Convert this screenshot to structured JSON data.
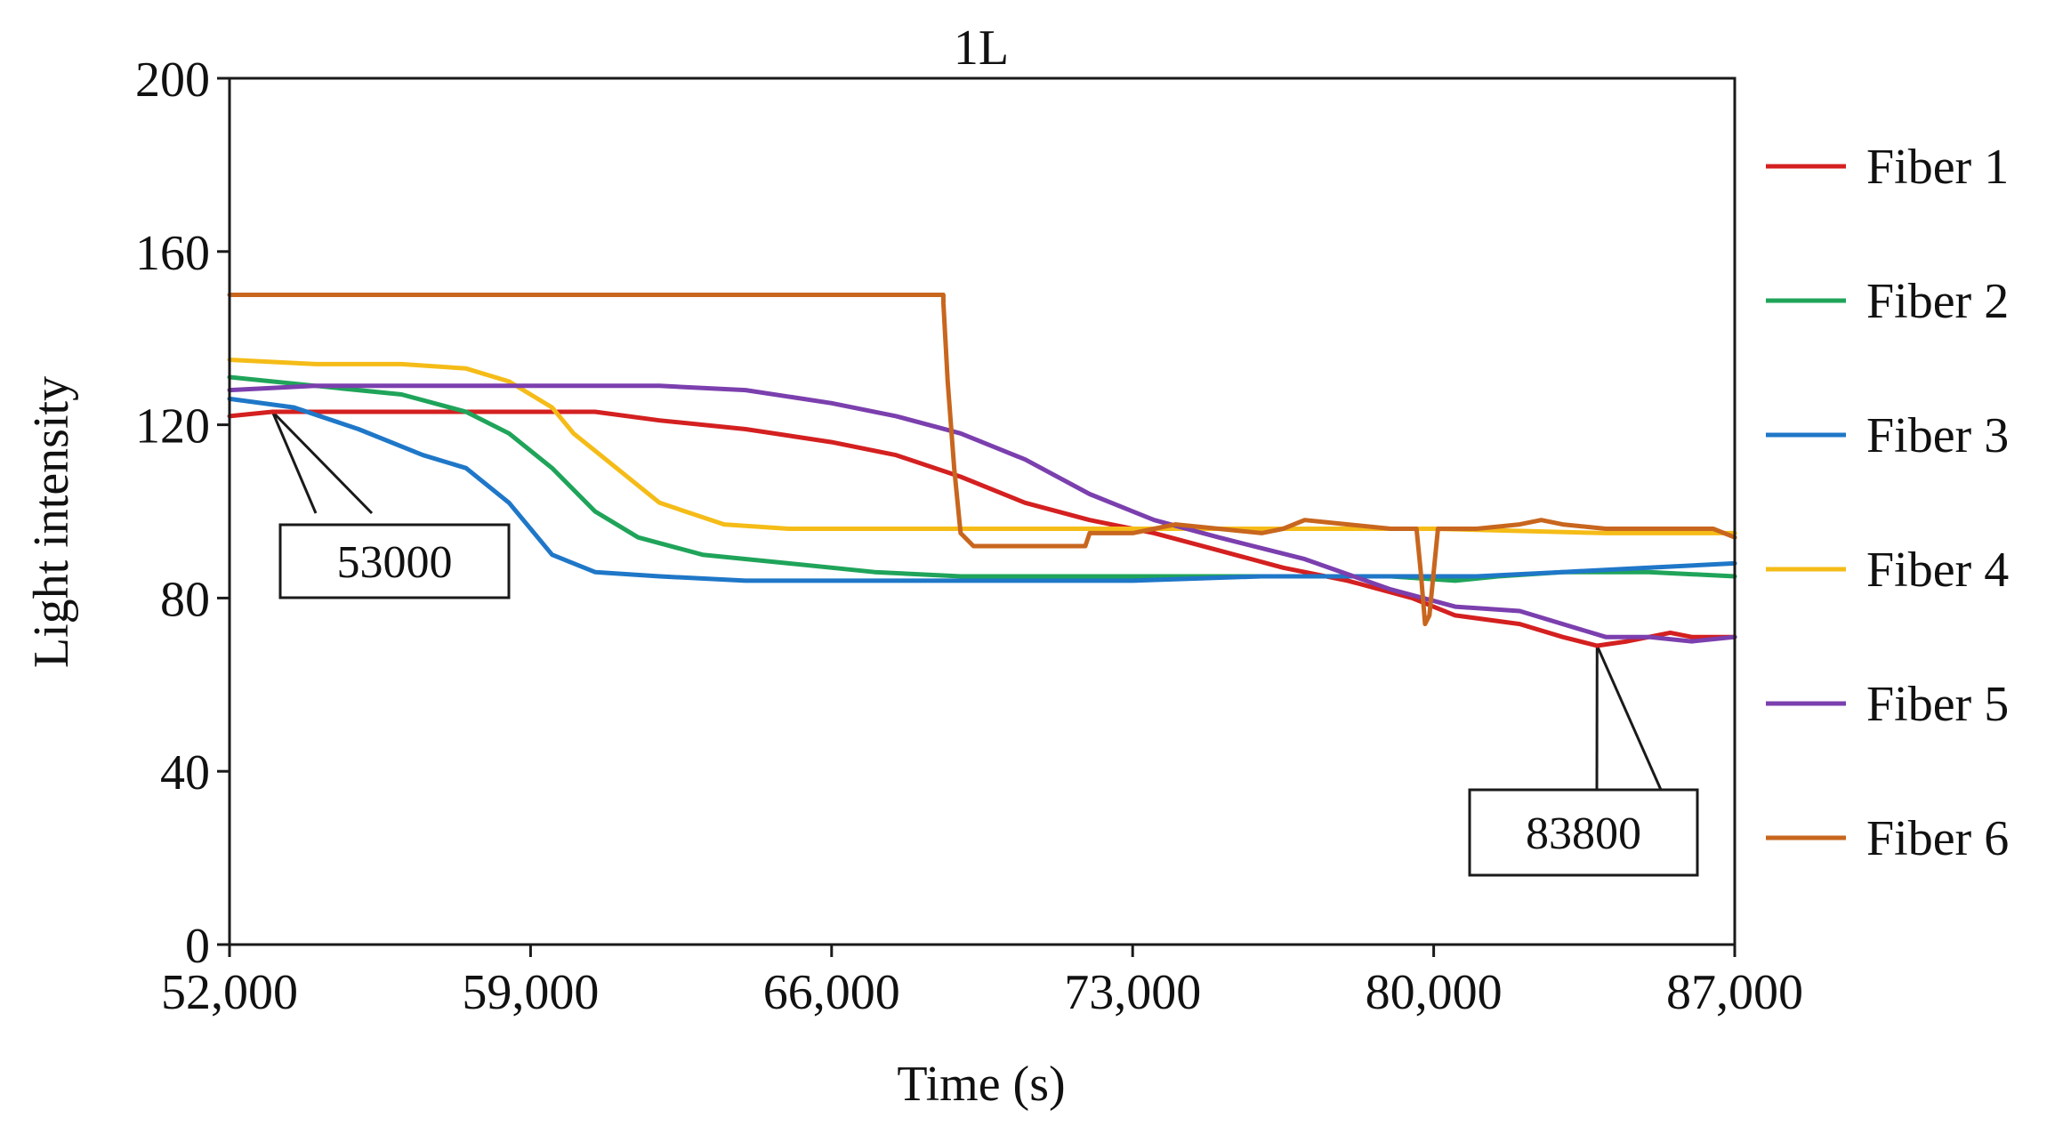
{
  "chart_data": {
    "type": "line",
    "title": "1L",
    "xlabel": "Time (s)",
    "ylabel": "Light intensity",
    "xlim": [
      52000,
      87000
    ],
    "ylim": [
      0,
      200
    ],
    "xticks": [
      52000,
      59000,
      66000,
      73000,
      80000,
      87000
    ],
    "xtick_labels": [
      "52,000",
      "59,000",
      "66,000",
      "73,000",
      "80,000",
      "87,000"
    ],
    "yticks": [
      0,
      40,
      80,
      120,
      160,
      200
    ],
    "ytick_labels": [
      "0",
      "40",
      "80",
      "120",
      "160",
      "200"
    ],
    "grid": false,
    "legend_position": "right",
    "series": [
      {
        "name": "Fiber 1",
        "color": "#D42020",
        "x": [
          52000,
          53000,
          55000,
          57000,
          59000,
          60500,
          62000,
          64000,
          66000,
          67500,
          69000,
          70500,
          72000,
          73500,
          75000,
          76500,
          78000,
          79500,
          80500,
          82000,
          83000,
          83800,
          84500,
          85500,
          86000,
          87000
        ],
        "y": [
          122,
          123,
          123,
          123,
          123,
          123,
          121,
          119,
          116,
          113,
          108,
          102,
          98,
          95,
          91,
          87,
          84,
          80,
          76,
          74,
          71,
          69,
          70,
          72,
          71,
          71
        ]
      },
      {
        "name": "Fiber 2",
        "color": "#1FA45A",
        "x": [
          52000,
          54000,
          56000,
          57500,
          58500,
          59500,
          60500,
          61500,
          63000,
          65000,
          67000,
          69000,
          71000,
          73000,
          75000,
          77000,
          79000,
          80500,
          81500,
          83000,
          85000,
          87000
        ],
        "y": [
          131,
          129,
          127,
          123,
          118,
          110,
          100,
          94,
          90,
          88,
          86,
          85,
          85,
          85,
          85,
          85,
          85,
          84,
          85,
          86,
          86,
          85
        ]
      },
      {
        "name": "Fiber 3",
        "color": "#1F77C8",
        "x": [
          52000,
          53500,
          55000,
          56500,
          57500,
          58500,
          59500,
          60500,
          62000,
          64000,
          67000,
          70000,
          73000,
          76000,
          79000,
          81000,
          83000,
          85000,
          87000
        ],
        "y": [
          126,
          124,
          119,
          113,
          110,
          102,
          90,
          86,
          85,
          84,
          84,
          84,
          84,
          85,
          85,
          85,
          86,
          87,
          88
        ]
      },
      {
        "name": "Fiber 4",
        "color": "#F5BC18",
        "x": [
          52000,
          54000,
          56000,
          57500,
          58500,
          59500,
          60000,
          61000,
          62000,
          63500,
          65000,
          68000,
          72000,
          76000,
          80000,
          84000,
          87000
        ],
        "y": [
          135,
          134,
          134,
          133,
          130,
          124,
          118,
          110,
          102,
          97,
          96,
          96,
          96,
          96,
          96,
          95,
          95
        ]
      },
      {
        "name": "Fiber 5",
        "color": "#7B3FAE",
        "x": [
          52000,
          54000,
          56000,
          58000,
          60000,
          62000,
          64000,
          66000,
          67500,
          69000,
          70500,
          72000,
          73500,
          75000,
          77000,
          79000,
          80500,
          82000,
          83000,
          84000,
          85000,
          86000,
          87000
        ],
        "y": [
          128,
          129,
          129,
          129,
          129,
          129,
          128,
          125,
          122,
          118,
          112,
          104,
          98,
          94,
          89,
          82,
          78,
          77,
          74,
          71,
          71,
          70,
          71
        ]
      },
      {
        "name": "Fiber 6",
        "color": "#C8661E",
        "x": [
          52000,
          55000,
          58000,
          61000,
          64000,
          66000,
          68000,
          68599,
          68600,
          68700,
          68850,
          69000,
          69300,
          70000,
          71000,
          71900,
          72000,
          73000,
          73500,
          74000,
          75000,
          76000,
          76500,
          77000,
          78000,
          79000,
          79600,
          79700,
          79800,
          79900,
          80000,
          80100,
          80200,
          81000,
          82000,
          82500,
          83000,
          84000,
          85000,
          86000,
          86500,
          87000
        ],
        "y": [
          150,
          150,
          150,
          150,
          150,
          150,
          150,
          150,
          148,
          130,
          110,
          95,
          92,
          92,
          92,
          92,
          95,
          95,
          96,
          97,
          96,
          95,
          96,
          98,
          97,
          96,
          96,
          86,
          74,
          76,
          86,
          96,
          96,
          96,
          97,
          98,
          97,
          96,
          96,
          96,
          96,
          94
        ]
      }
    ],
    "annotations": [
      {
        "text": "53000",
        "x": 53000,
        "y": 123
      },
      {
        "text": "83800",
        "x": 83800,
        "y": 69
      }
    ]
  }
}
